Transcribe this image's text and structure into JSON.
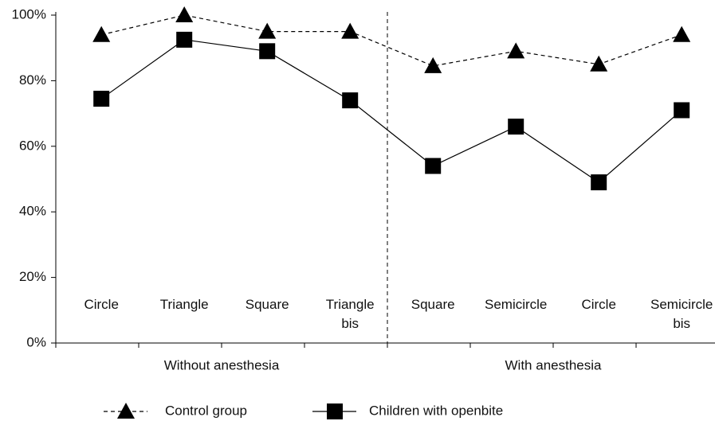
{
  "chart_data": {
    "type": "line",
    "categories": [
      "Circle",
      "Triangle",
      "Square",
      "Triangle\nbis",
      "Square",
      "Semicircle",
      "Circle",
      "Semicircle\nbis"
    ],
    "groups": [
      "Without anesthesia",
      "With anesthesia"
    ],
    "series": [
      {
        "name": "Control group",
        "color": "#000000",
        "marker": "triangle",
        "dash": true,
        "values": [
          94,
          100,
          95,
          95,
          84.5,
          89,
          85,
          94
        ]
      },
      {
        "name": "Children with openbite",
        "color": "#000000",
        "marker": "square",
        "dash": false,
        "values": [
          74.5,
          92.5,
          89,
          74,
          54,
          66,
          49,
          71
        ]
      }
    ],
    "ylim": [
      0,
      100
    ],
    "yticks": [
      {
        "value": 0,
        "label": "0%"
      },
      {
        "value": 20,
        "label": "20%"
      },
      {
        "value": 40,
        "label": "40%"
      },
      {
        "value": 60,
        "label": "60%"
      },
      {
        "value": 80,
        "label": "80%"
      },
      {
        "value": 100,
        "label": "100%"
      }
    ]
  }
}
